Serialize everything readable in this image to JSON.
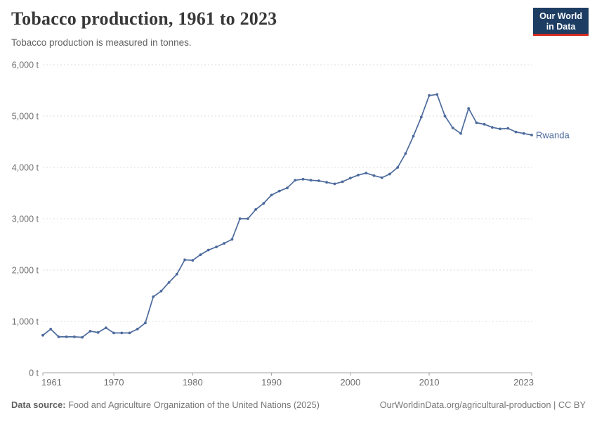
{
  "header": {
    "title": "Tobacco production, 1961 to 2023",
    "subtitle": "Tobacco production is measured in tonnes.",
    "logo": {
      "line1": "Our World",
      "line2": "in Data"
    }
  },
  "footer": {
    "source_label": "Data source:",
    "source_text": " Food and Agriculture Organization of the United Nations (2025)",
    "link_text": "OurWorldinData.org/agricultural-production | CC BY"
  },
  "colors": {
    "line": "#4C6A9C",
    "entity_label": "#4C6A9C",
    "grid": "#dcdcdc",
    "axis": "#a3a3a3",
    "tick_label": "#6e6e6e",
    "logo_bg": "#1D3D63",
    "logo_accent": "#D42B21"
  },
  "chart_data": {
    "type": "line",
    "title": "Tobacco production, 1961 to 2023",
    "subtitle": "Tobacco production is measured in tonnes.",
    "xlabel": "",
    "ylabel": "tonnes",
    "xlim": [
      1961,
      2023
    ],
    "ylim": [
      0,
      6000
    ],
    "grid": true,
    "legend_position": "end-of-line",
    "x": [
      1961,
      1962,
      1963,
      1964,
      1965,
      1966,
      1967,
      1968,
      1969,
      1970,
      1971,
      1972,
      1973,
      1974,
      1975,
      1976,
      1977,
      1978,
      1979,
      1980,
      1981,
      1982,
      1983,
      1984,
      1985,
      1986,
      1987,
      1988,
      1989,
      1990,
      1991,
      1992,
      1993,
      1994,
      1995,
      1996,
      1997,
      1998,
      1999,
      2000,
      2001,
      2002,
      2003,
      2004,
      2005,
      2006,
      2007,
      2008,
      2009,
      2010,
      2011,
      2012,
      2013,
      2014,
      2015,
      2016,
      2017,
      2018,
      2019,
      2020,
      2021,
      2022,
      2023
    ],
    "series": [
      {
        "name": "Rwanda",
        "values": [
          730,
          850,
          700,
          700,
          700,
          690,
          810,
          785,
          875,
          775,
          775,
          775,
          850,
          970,
          1480,
          1590,
          1760,
          1920,
          2200,
          2190,
          2300,
          2390,
          2450,
          2520,
          2600,
          3000,
          3000,
          3180,
          3300,
          3460,
          3540,
          3600,
          3750,
          3770,
          3750,
          3740,
          3710,
          3680,
          3720,
          3790,
          3850,
          3890,
          3840,
          3800,
          3870,
          4000,
          4270,
          4610,
          4980,
          5400,
          5420,
          5000,
          4770,
          4660,
          5150,
          4870,
          4840,
          4780,
          4750,
          4760,
          4690,
          4660,
          4630
        ]
      }
    ],
    "yticks": [
      {
        "value": 0,
        "label": "0 t"
      },
      {
        "value": 1000,
        "label": "1,000 t"
      },
      {
        "value": 2000,
        "label": "2,000 t"
      },
      {
        "value": 3000,
        "label": "3,000 t"
      },
      {
        "value": 4000,
        "label": "4,000 t"
      },
      {
        "value": 5000,
        "label": "5,000 t"
      },
      {
        "value": 6000,
        "label": "6,000 t"
      }
    ],
    "xticks": [
      {
        "value": 1961,
        "label": "1961"
      },
      {
        "value": 1970,
        "label": "1970"
      },
      {
        "value": 1980,
        "label": "1980"
      },
      {
        "value": 1990,
        "label": "1990"
      },
      {
        "value": 2000,
        "label": "2000"
      },
      {
        "value": 2010,
        "label": "2010"
      },
      {
        "value": 2023,
        "label": "2023"
      }
    ]
  }
}
